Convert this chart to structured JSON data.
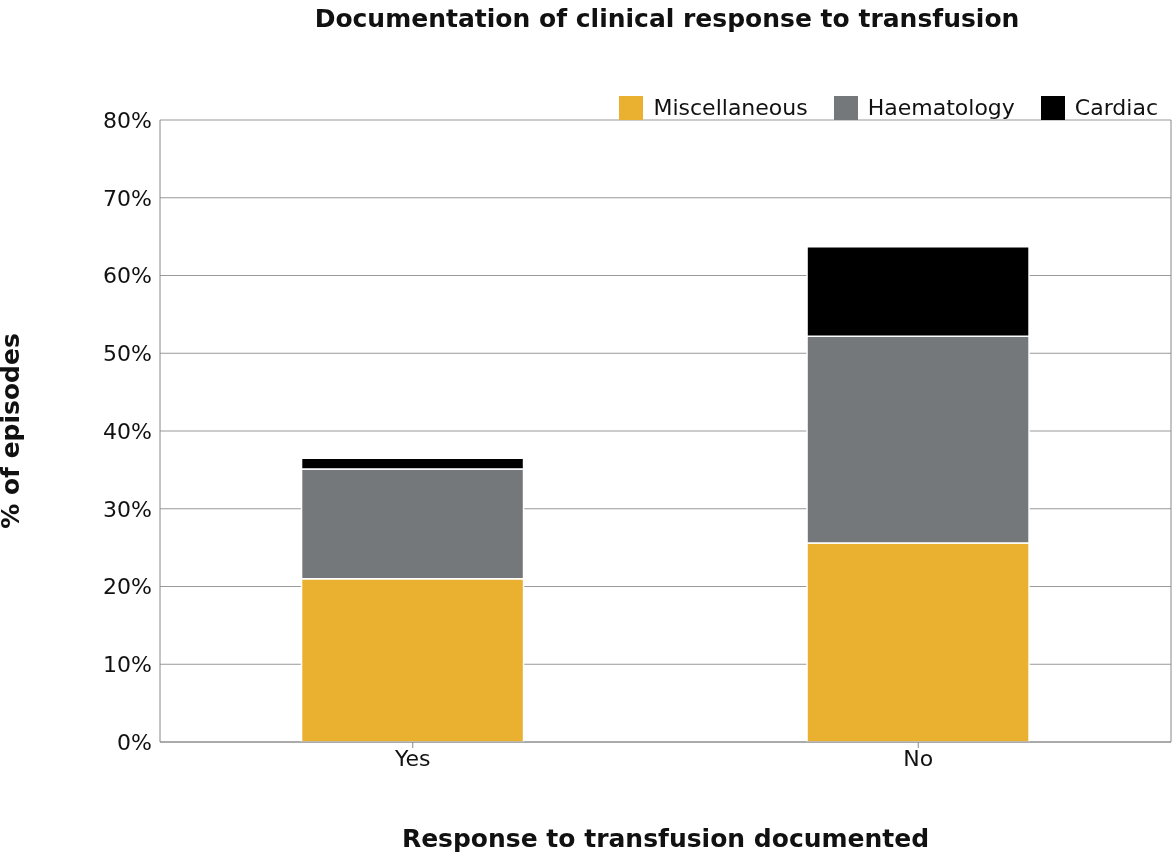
{
  "chart_data": {
    "type": "bar",
    "title": "Documentation of clinical response to transfusion",
    "xlabel": "Response to transfusion documented",
    "ylabel": "% of episodes",
    "categories": [
      "Yes",
      "No"
    ],
    "stacked": true,
    "series": [
      {
        "name": "Miscellaneous",
        "color": "#eab02f",
        "values": [
          21,
          25.6
        ]
      },
      {
        "name": "Haematology",
        "color": "#75787b",
        "values": [
          14.1,
          26.6
        ]
      },
      {
        "name": "Cardiac",
        "color": "#000000",
        "values": [
          1.4,
          11.5
        ]
      }
    ],
    "ylim": [
      0,
      80
    ],
    "yticks": [
      {
        "value": 0,
        "label": "0%"
      },
      {
        "value": 10,
        "label": "10%"
      },
      {
        "value": 20,
        "label": "20%"
      },
      {
        "value": 30,
        "label": "30%"
      },
      {
        "value": 40,
        "label": "40%"
      },
      {
        "value": 50,
        "label": "50%"
      },
      {
        "value": 60,
        "label": "60%"
      },
      {
        "value": 70,
        "label": "70%"
      },
      {
        "value": 80,
        "label": "80%"
      }
    ],
    "grid": "y",
    "legend": "top right"
  }
}
